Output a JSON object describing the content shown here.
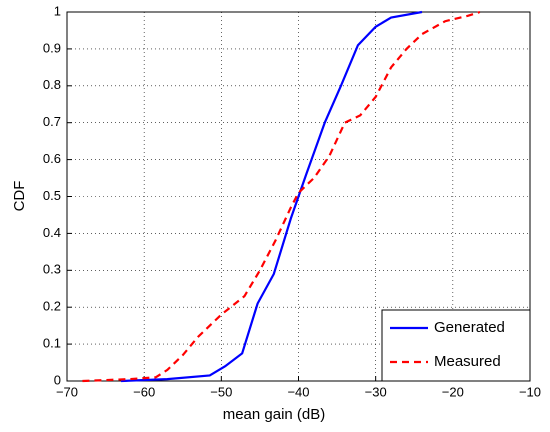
{
  "chart_data": {
    "type": "line",
    "x_label": "mean gain (dB)",
    "y_label": "CDF",
    "xlim": [
      -70,
      -10
    ],
    "xticks": [
      {
        "value": -70,
        "label": "−70"
      },
      {
        "value": -60,
        "label": "−60"
      },
      {
        "value": -50,
        "label": "−50"
      },
      {
        "value": -40,
        "label": "−40"
      },
      {
        "value": -30,
        "label": "−30"
      },
      {
        "value": -20,
        "label": "−20"
      },
      {
        "value": -10,
        "label": "−10"
      }
    ],
    "ylim": [
      0,
      1
    ],
    "yticks": [
      0,
      0.1,
      0.2,
      0.3,
      0.4,
      0.5,
      0.6,
      0.7,
      0.8,
      0.9,
      1
    ],
    "grid": true,
    "legend": "lower right",
    "series": [
      {
        "name": "Generated",
        "color": "#0000ff",
        "dash": "solid",
        "x": [
          -63,
          -57,
          -51.5,
          -49.5,
          -47.3,
          -45.3,
          -43.2,
          -41,
          -39,
          -36.6,
          -34.5,
          -32.3,
          -30,
          -28,
          -24
        ],
        "values": [
          0,
          0.005,
          0.015,
          0.04,
          0.075,
          0.21,
          0.29,
          0.44,
          0.56,
          0.7,
          0.8,
          0.91,
          0.96,
          0.985,
          1
        ]
      },
      {
        "name": "Measured",
        "color": "#ff0000",
        "dash": "dashed",
        "x": [
          -68,
          -62,
          -58.5,
          -57,
          -55,
          -53,
          -50,
          -47,
          -45,
          -43,
          -41,
          -40,
          -38,
          -36,
          -34,
          -32,
          -30,
          -28,
          -26,
          -24,
          -21,
          -18,
          -16.5
        ],
        "values": [
          0,
          0.005,
          0.01,
          0.03,
          0.07,
          0.12,
          0.18,
          0.23,
          0.3,
          0.38,
          0.47,
          0.51,
          0.55,
          0.61,
          0.7,
          0.72,
          0.77,
          0.85,
          0.9,
          0.94,
          0.975,
          0.99,
          1
        ]
      }
    ]
  }
}
